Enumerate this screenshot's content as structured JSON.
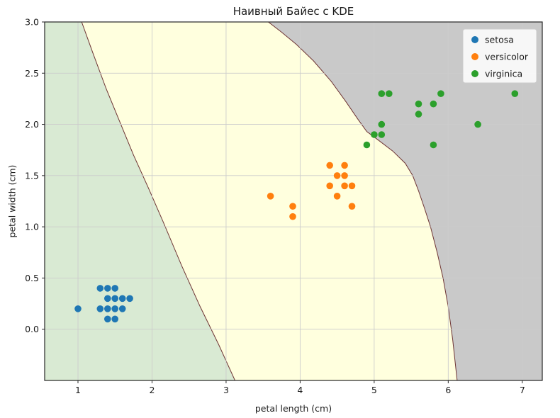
{
  "chart_data": {
    "type": "scatter",
    "title": "Наивный Байес с KDE",
    "xlabel": "petal length (cm)",
    "ylabel": "petal width (cm)",
    "xlim": [
      0.55,
      7.27
    ],
    "ylim": [
      -0.5,
      3.0
    ],
    "xticks": [
      "1",
      "2",
      "3",
      "4",
      "5",
      "6",
      "7"
    ],
    "yticks": [
      "0.0",
      "0.5",
      "1.0",
      "1.5",
      "2.0",
      "2.5",
      "3.0"
    ],
    "grid": true,
    "grid_color": "#cccccc",
    "frame_color": "#262626",
    "boundary_line_color": "#6e3434",
    "legend": {
      "position": "upper right",
      "entries": [
        "setosa",
        "versicolor",
        "virginica"
      ]
    },
    "series": [
      {
        "name": "setosa",
        "color": "#1f77b4",
        "points": [
          [
            1.0,
            0.2
          ],
          [
            1.3,
            0.4
          ],
          [
            1.4,
            0.4
          ],
          [
            1.5,
            0.4
          ],
          [
            1.4,
            0.3
          ],
          [
            1.5,
            0.3
          ],
          [
            1.6,
            0.3
          ],
          [
            1.7,
            0.3
          ],
          [
            1.3,
            0.2
          ],
          [
            1.4,
            0.2
          ],
          [
            1.5,
            0.2
          ],
          [
            1.6,
            0.2
          ],
          [
            1.4,
            0.1
          ],
          [
            1.5,
            0.1
          ]
        ]
      },
      {
        "name": "versicolor",
        "color": "#ff7f0e",
        "points": [
          [
            3.6,
            1.3
          ],
          [
            3.9,
            1.2
          ],
          [
            3.9,
            1.1
          ],
          [
            4.4,
            1.6
          ],
          [
            4.6,
            1.6
          ],
          [
            4.5,
            1.5
          ],
          [
            4.6,
            1.5
          ],
          [
            4.4,
            1.4
          ],
          [
            4.6,
            1.4
          ],
          [
            4.7,
            1.4
          ],
          [
            4.5,
            1.3
          ],
          [
            4.7,
            1.2
          ]
        ]
      },
      {
        "name": "virginica",
        "color": "#2ca02c",
        "points": [
          [
            4.9,
            1.8
          ],
          [
            5.0,
            1.9
          ],
          [
            5.1,
            1.9
          ],
          [
            5.1,
            2.0
          ],
          [
            5.1,
            2.3
          ],
          [
            5.2,
            2.3
          ],
          [
            5.6,
            2.1
          ],
          [
            5.6,
            2.2
          ],
          [
            5.8,
            2.2
          ],
          [
            5.8,
            1.8
          ],
          [
            5.9,
            2.3
          ],
          [
            6.4,
            2.0
          ],
          [
            6.9,
            2.3
          ]
        ]
      }
    ],
    "regions": [
      {
        "name": "setosa-region",
        "fill": "#d9ead3"
      },
      {
        "name": "versicolor-region",
        "fill": "#ffffde"
      },
      {
        "name": "virginica-region",
        "fill": "#c9c9c9"
      }
    ],
    "boundaries": {
      "left": [
        [
          1.05,
          3.0
        ],
        [
          1.2,
          2.7
        ],
        [
          1.38,
          2.35
        ],
        [
          1.55,
          2.05
        ],
        [
          1.75,
          1.7
        ],
        [
          1.95,
          1.38
        ],
        [
          2.15,
          1.05
        ],
        [
          2.4,
          0.62
        ],
        [
          2.65,
          0.22
        ],
        [
          2.9,
          -0.15
        ],
        [
          3.12,
          -0.5
        ]
      ],
      "right": [
        [
          3.57,
          3.0
        ],
        [
          3.75,
          2.9
        ],
        [
          3.95,
          2.78
        ],
        [
          4.18,
          2.62
        ],
        [
          4.42,
          2.42
        ],
        [
          4.62,
          2.22
        ],
        [
          4.78,
          2.05
        ],
        [
          4.9,
          1.93
        ],
        [
          5.05,
          1.85
        ],
        [
          5.25,
          1.74
        ],
        [
          5.42,
          1.62
        ],
        [
          5.52,
          1.5
        ],
        [
          5.6,
          1.35
        ],
        [
          5.68,
          1.18
        ],
        [
          5.76,
          1.0
        ],
        [
          5.85,
          0.75
        ],
        [
          5.93,
          0.5
        ],
        [
          6.0,
          0.22
        ],
        [
          6.06,
          -0.1
        ],
        [
          6.12,
          -0.5
        ]
      ]
    }
  }
}
